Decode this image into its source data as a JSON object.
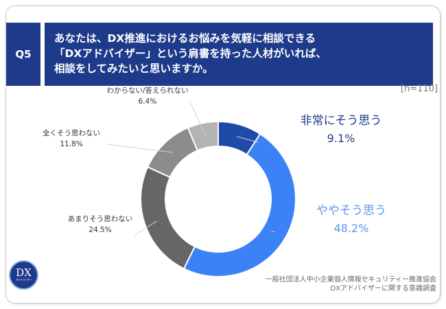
{
  "question": {
    "id": "Q5",
    "lines": [
      "あなたは、DX推進におけるお悩みを気軽に相談できる",
      "「DXアドバイザー」という肩書を持った人材がいれば、",
      "相談をしてみたいと思いますか。"
    ]
  },
  "n_label": "[n=110]",
  "chart_data": {
    "type": "pie",
    "donut": true,
    "title": "",
    "slices": [
      {
        "label": "非常にそう思う",
        "value": 9.1,
        "value_label": "9.1%",
        "color": "#1e4aa8"
      },
      {
        "label": "ややそう思う",
        "value": 48.2,
        "value_label": "48.2%",
        "color": "#3b82f6"
      },
      {
        "label": "あまりそう思わない",
        "value": 24.5,
        "value_label": "24.5%",
        "color": "#666666"
      },
      {
        "label": "全くそう思わない",
        "value": 11.8,
        "value_label": "11.8%",
        "color": "#8c8c8c"
      },
      {
        "label": "わからない/答えられない",
        "value": 6.4,
        "value_label": "6.4%",
        "color": "#b3b3b3"
      }
    ],
    "label_colors": [
      "#1e3a8a",
      "#5b95f0",
      "#333333",
      "#333333",
      "#333333"
    ]
  },
  "source": [
    "一般社団法人中小企業個人情報セキュリティー推進協会",
    "DXアドバイザーに関する意識調査"
  ],
  "logo": {
    "text": "DX",
    "subtext": "アドバイザー"
  }
}
